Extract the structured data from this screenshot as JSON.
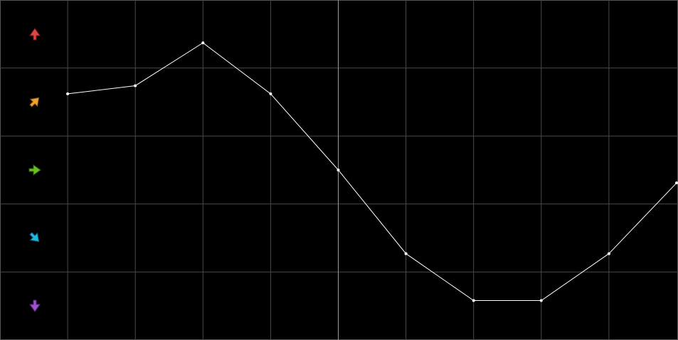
{
  "chart_data": {
    "type": "line",
    "x": [
      1,
      2,
      3,
      4,
      5,
      6,
      7,
      8,
      9,
      10
    ],
    "values": [
      1.12,
      1.24,
      1.87,
      1.12,
      0,
      -1.23,
      -1.92,
      -1.92,
      -1.23,
      -0.19
    ],
    "color": "#ffffff",
    "xlim": [
      0,
      10
    ],
    "xticks": [
      1,
      2,
      3,
      4,
      5,
      6,
      7,
      8,
      9
    ],
    "ylim": [
      -2.5,
      2.5
    ],
    "yticks": [
      -1.5,
      -0.5,
      0.5,
      1.5
    ],
    "highlight_x": 5,
    "grid": true
  }
}
